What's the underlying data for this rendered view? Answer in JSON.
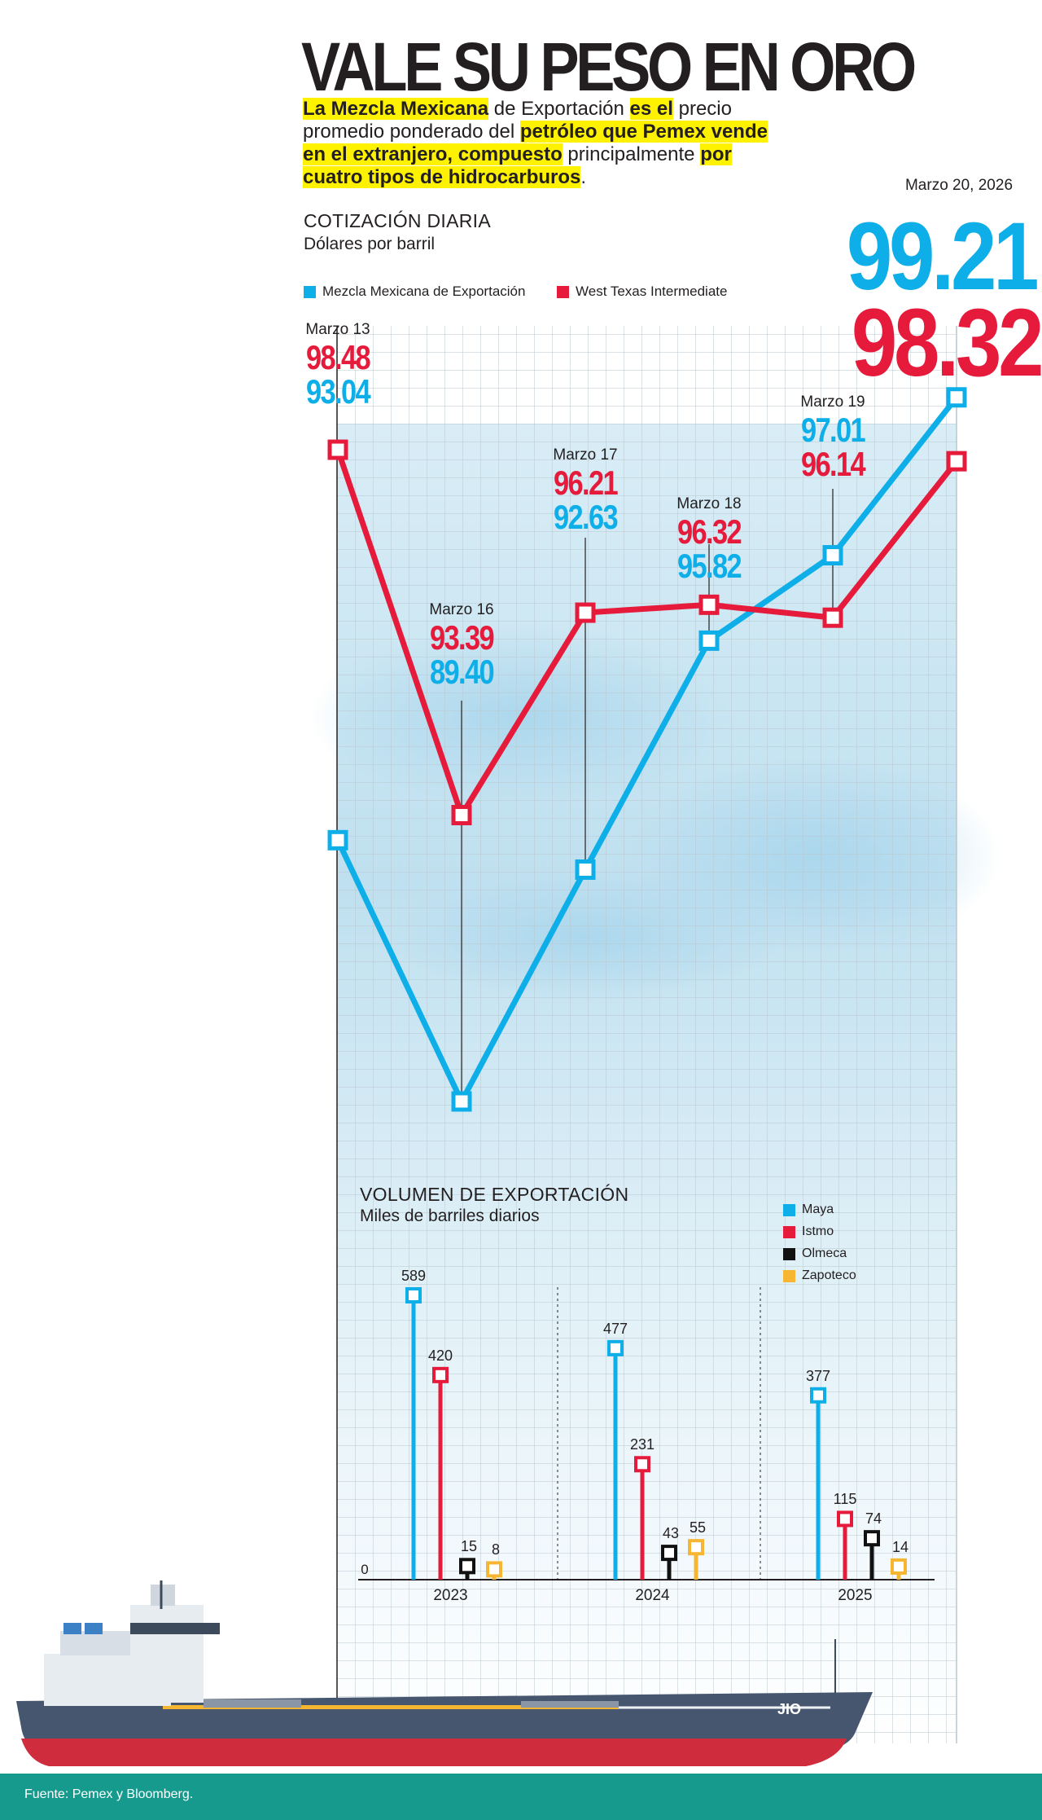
{
  "title": "VALE SU PESO EN ORO",
  "intro": [
    {
      "text": "La Mezcla Mexicana",
      "hl": true
    },
    {
      "text": " de Exportación ",
      "hl": false
    },
    {
      "text": "es el",
      "hl": true
    },
    {
      "text": " precio promedio ponderado del ",
      "hl": false
    },
    {
      "text": "petróleo que Pemex vende en el extranjero, compuesto",
      "hl": true
    },
    {
      "text": " principalmente ",
      "hl": false
    },
    {
      "text": "por cuatro tipos de hidrocarburos",
      "hl": true
    },
    {
      "text": ".",
      "hl": false
    }
  ],
  "colors": {
    "mezcla": "#0eaee8",
    "wti": "#e61b3c",
    "olmeca": "#111111",
    "zapoteco": "#f6b632",
    "grid": "#b9c7cf",
    "footer": "#169a8d"
  },
  "daily": {
    "section_title": "COTIZACIÓN DIARIA",
    "section_sub": "Dólares por barril",
    "chart_data": {
      "type": "line",
      "categories": [
        "Marzo 13",
        "Marzo 16",
        "Marzo 17",
        "Marzo 18",
        "Marzo 19",
        "Marzo 20, 2026"
      ],
      "series": [
        {
          "name": "Mezcla Mexicana de Exportación",
          "values": [
            "93.04",
            "89.40",
            "92.63",
            "95.82",
            "97.01",
            "99.21"
          ]
        },
        {
          "name": "West Texas Intermediate",
          "values": [
            "98.48",
            "93.39",
            "96.21",
            "96.32",
            "96.14",
            "98.32"
          ]
        }
      ],
      "ylim": [
        89,
        100
      ]
    }
  },
  "volume": {
    "section_title": "VOLUMEN DE EXPORTACIÓN",
    "section_sub": "Miles de barriles diarios",
    "zero_label": "0",
    "chart_data": {
      "type": "bar",
      "categories": [
        "2023",
        "2024",
        "2025"
      ],
      "series": [
        {
          "name": "Maya",
          "values": [
            589,
            477,
            377
          ]
        },
        {
          "name": "Istmo",
          "values": [
            420,
            231,
            115
          ]
        },
        {
          "name": "Olmeca",
          "values": [
            15,
            43,
            74
          ]
        },
        {
          "name": "Zapoteco",
          "values": [
            8,
            55,
            14
          ]
        }
      ],
      "ylim": [
        0,
        600
      ]
    }
  },
  "ship": {
    "name": "JIO"
  },
  "source": "Fuente: Pemex y Bloomberg."
}
